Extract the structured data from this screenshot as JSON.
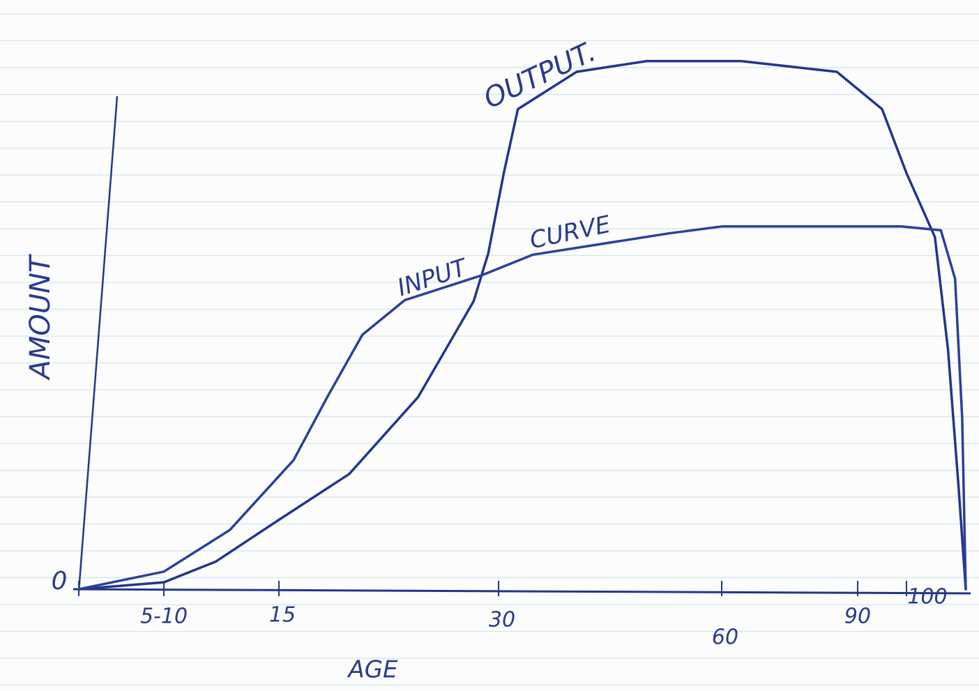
{
  "chart_data": {
    "type": "line",
    "x_label": "AGE",
    "y_label": "AMOUNT",
    "annotations": [
      {
        "text": "OUTPUT."
      },
      {
        "text": "INPUT"
      },
      {
        "text": "CURVE"
      }
    ],
    "xlim": [
      0,
      105
    ],
    "xticks": [
      0,
      {
        "value": 7.5,
        "label": "5-10"
      },
      15,
      30,
      60,
      90,
      100
    ],
    "ylim": [
      0,
      100
    ],
    "series": [
      {
        "color": "#24358a",
        "x": [
          0,
          7.5,
          10.9,
          15,
          19.8,
          24.5,
          28.3,
          29.3,
          30.7,
          32.6,
          40.5,
          49.9,
          64.3,
          85.4,
          95,
          100,
          102.4,
          103.5,
          104.4,
          105
        ],
        "values": [
          0,
          1.3,
          5.2,
          13,
          21.6,
          36,
          54,
          63,
          78,
          90,
          97,
          99,
          99,
          97,
          90,
          78,
          66,
          45,
          19,
          0
        ]
      },
      {
        "color": "#2c3f98",
        "x": [
          0,
          7.5,
          11.8,
          16,
          18.3,
          20.7,
          23.6,
          28.8,
          34.6,
          52.9,
          60,
          99,
          102.9,
          104.1,
          104.7,
          105
        ],
        "values": [
          0,
          3.3,
          11.1,
          24.2,
          36,
          47.7,
          54.2,
          58.8,
          62.7,
          66.7,
          68,
          68,
          67.3,
          58.2,
          32,
          0
        ]
      }
    ]
  }
}
